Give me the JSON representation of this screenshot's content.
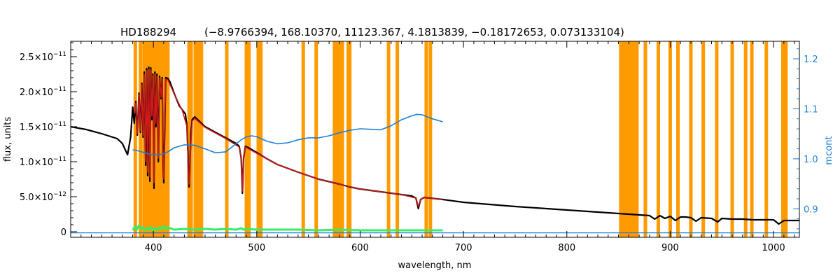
{
  "chart_data": {
    "type": "line",
    "title_star": "HD188294",
    "title_params": "(−8.9766394, 168.10370, 11123.367, 4.1813839, −0.18172653, 0.073133104)",
    "xlabel": "wavelength, nm",
    "ylabel": "flux, units",
    "ylabel_right": "mcont",
    "xlim": [
      320,
      1025
    ],
    "ylim": [
      -8e-13,
      2.72e-11
    ],
    "ylim_right": [
      0.843,
      1.235
    ],
    "x_ticks": [
      400,
      500,
      600,
      700,
      800,
      900,
      1000
    ],
    "x_tick_labels": [
      "400",
      "500",
      "600",
      "700",
      "800",
      "900",
      "1000"
    ],
    "y_ticks": [
      0,
      5e-12,
      1e-11,
      1.5e-11,
      2e-11,
      2.5e-11
    ],
    "y_tick_mantissas": [
      "0",
      "5.0×10",
      "1.0×10",
      "1.5×10",
      "2.0×10",
      "2.5×10"
    ],
    "y_tick_exponents": [
      "",
      "−12",
      "−11",
      "−11",
      "−11",
      "−11"
    ],
    "y_right_ticks": [
      0.9,
      1.0,
      1.1,
      1.2
    ],
    "y_right_tick_labels": [
      "0.9",
      "1.0",
      "1.1",
      "1.2"
    ],
    "colors": {
      "observed": "#000000",
      "model": "#cc1a1a",
      "mcont": "#1e7fd6",
      "residual": "#33ee66",
      "mask": "#ff9a00",
      "right_axis": "#1e7fd6"
    },
    "mask_lines": [
      382.5,
      387.5,
      391,
      394,
      397,
      400,
      402,
      404.5,
      406.5,
      409,
      411,
      414,
      434.5,
      436.5,
      440.5,
      443.5,
      446.5,
      471,
      490,
      492.5,
      501.5,
      504,
      545,
      557.5,
      579.5,
      588.5,
      590,
      627.5,
      636,
      664,
      668
    ],
    "mask_bands": [
      [
        573.5,
        584.5
      ],
      [
        850.5,
        869.5
      ]
    ],
    "mask_lines_nir": [
      876,
      888.5,
      900,
      907.5,
      920,
      932,
      945,
      960,
      973,
      979,
      993,
      1009,
      1012
    ],
    "series": [
      {
        "id": "observed",
        "x": [
          320,
          335,
          350,
          365,
          370,
          375,
          378,
          380,
          381.5,
          383,
          384.5,
          386,
          387.5,
          388.8,
          390,
          391.2,
          392.5,
          393.5,
          394.5,
          395.5,
          396.6,
          397.5,
          398.5,
          399.5,
          400.6,
          401.5,
          402.5,
          403.5,
          404.8,
          406,
          407.5,
          408.5,
          409.3,
          410.1,
          410.9,
          412,
          414,
          416,
          420,
          425,
          428,
          431,
          432.5,
          433.5,
          434,
          434.6,
          435.3,
          436.3,
          437.5,
          440,
          445,
          450,
          460,
          470,
          480,
          483,
          485,
          486.1,
          487.3,
          489,
          492,
          500,
          510,
          520,
          540,
          560,
          580,
          590,
          600,
          620,
          640,
          650,
          654,
          656.3,
          658.5,
          662,
          680,
          700,
          750,
          800,
          850,
          860,
          870,
          880,
          885,
          890,
          895,
          900,
          905,
          910,
          915,
          920,
          925,
          930,
          940,
          946,
          950,
          960,
          970,
          980,
          990,
          1000,
          1005,
          1010,
          1015,
          1025
        ],
        "y": [
          1.5e-11,
          1.46e-11,
          1.4e-11,
          1.33e-11,
          1.26e-11,
          1.1e-11,
          1.35e-11,
          1.78e-11,
          1.55e-11,
          1.86e-11,
          1.38e-11,
          1.98e-11,
          1.42e-11,
          2.12e-11,
          1.35e-11,
          2.28e-11,
          9.5e-12,
          2.33e-11,
          8e-12,
          2.35e-11,
          7.2e-12,
          2.34e-11,
          1.6e-11,
          2.25e-11,
          6.2e-12,
          2.28e-11,
          1.5e-11,
          2.25e-11,
          1e-11,
          2.22e-11,
          1.9e-11,
          2.2e-11,
          1e-11,
          7e-12,
          1.4e-11,
          2.2e-11,
          2.19e-11,
          2.14e-11,
          1.98e-11,
          1.8e-11,
          1.74e-11,
          1.68e-11,
          1.5e-11,
          1.1e-11,
          7.5e-12,
          6.4e-12,
          9.5e-12,
          1.4e-11,
          1.6e-11,
          1.64e-11,
          1.57e-11,
          1.5e-11,
          1.42e-11,
          1.34e-11,
          1.26e-11,
          1.22e-11,
          1.05e-11,
          5.5e-12,
          1.05e-11,
          1.22e-11,
          1.2e-11,
          1.13e-11,
          1.04e-11,
          9.6e-12,
          8.5e-12,
          7.5e-12,
          6.8e-12,
          6.4e-12,
          6.1e-12,
          5.7e-12,
          5.3e-12,
          5.1e-12,
          4.8e-12,
          3.3e-12,
          4.6e-12,
          4.9e-12,
          4.6e-12,
          4.2e-12,
          3.6e-12,
          3.1e-12,
          2.6e-12,
          2.5e-12,
          2.4e-12,
          2.3e-12,
          1.8e-12,
          2.3e-12,
          1.9e-12,
          2.2e-12,
          1.6e-12,
          2.1e-12,
          2.1e-12,
          2e-12,
          1.5e-12,
          2e-12,
          1.9e-12,
          1.4e-12,
          1.9e-12,
          1.8e-12,
          1.8e-12,
          1.7e-12,
          1.7e-12,
          1.7e-12,
          1.1e-12,
          1.6e-12,
          1.6e-12,
          1.6e-12
        ]
      },
      {
        "id": "model",
        "x": [
          382,
          383,
          384.5,
          386,
          387.5,
          388.8,
          390,
          391.2,
          392.5,
          393.5,
          394.5,
          395.5,
          396.6,
          397.5,
          398.5,
          399.5,
          400.6,
          401.5,
          402.5,
          403.5,
          404.8,
          406,
          407.5,
          408.5,
          409.3,
          410.1,
          410.9,
          412,
          414,
          420,
          428,
          432.5,
          434,
          434.6,
          435.3,
          437.5,
          440,
          450,
          470,
          483,
          485,
          486.1,
          487.3,
          489,
          500,
          520,
          540,
          560,
          580,
          600,
          620,
          640,
          654,
          656.3,
          658.5,
          662,
          680
        ],
        "y": [
          1.68e-11,
          1.84e-11,
          1.4e-11,
          1.96e-11,
          1.44e-11,
          2.1e-11,
          1.38e-11,
          2.25e-11,
          1e-11,
          2.3e-11,
          8.5e-12,
          2.32e-11,
          7.8e-12,
          2.31e-11,
          1.65e-11,
          2.23e-11,
          7e-12,
          2.25e-11,
          1.55e-11,
          2.22e-11,
          1.05e-11,
          2.2e-11,
          1.92e-11,
          2.18e-11,
          1.05e-11,
          7.5e-12,
          1.45e-11,
          2.18e-11,
          2.17e-11,
          1.97e-11,
          1.73e-11,
          1.5e-11,
          7.8e-12,
          6.8e-12,
          9.8e-12,
          1.58e-11,
          1.62e-11,
          1.49e-11,
          1.33e-11,
          1.21e-11,
          1.06e-11,
          5.8e-12,
          1.06e-11,
          1.21e-11,
          1.12e-11,
          9.6e-12,
          8.5e-12,
          7.5e-12,
          6.8e-12,
          6.1e-12,
          5.7e-12,
          5.3e-12,
          4.8e-12,
          3.6e-12,
          4.6e-12,
          4.9e-12,
          4.6e-12
        ]
      },
      {
        "id": "mcont",
        "axis": "right",
        "x": [
          380,
          385,
          390,
          395,
          400,
          405,
          410,
          415,
          420,
          430,
          440,
          450,
          460,
          470,
          480,
          485,
          490,
          495,
          500,
          510,
          520,
          530,
          540,
          550,
          560,
          570,
          580,
          590,
          600,
          610,
          620,
          630,
          640,
          650,
          655,
          660,
          670,
          680
        ],
        "y": [
          1.018,
          1.016,
          1.013,
          1.01,
          1.008,
          1.008,
          1.01,
          1.015,
          1.022,
          1.028,
          1.027,
          1.02,
          1.012,
          1.014,
          1.03,
          1.038,
          1.044,
          1.046,
          1.044,
          1.035,
          1.03,
          1.032,
          1.038,
          1.042,
          1.042,
          1.046,
          1.052,
          1.057,
          1.06,
          1.059,
          1.058,
          1.066,
          1.078,
          1.086,
          1.089,
          1.088,
          1.08,
          1.074
        ]
      },
      {
        "id": "mcont_flat",
        "axis": "right",
        "x": [
          320,
          1025
        ],
        "y": [
          0.852,
          0.852
        ]
      },
      {
        "id": "residual",
        "x": [
          380,
          382,
          384,
          386,
          388,
          390,
          392,
          394,
          396,
          398,
          400,
          402,
          404,
          406,
          408,
          410,
          412,
          414,
          420,
          430,
          440,
          450,
          460,
          470,
          480,
          485,
          487,
          490,
          500,
          520,
          540,
          560,
          580,
          600,
          620,
          640,
          660,
          680
        ],
        "y": [
          2e-13,
          7e-13,
          3e-13,
          9e-13,
          4e-13,
          6e-13,
          2e-13,
          5e-13,
          3e-13,
          7e-13,
          2e-13,
          5e-13,
          3e-13,
          6e-13,
          4e-13,
          8e-13,
          4e-13,
          6e-13,
          3e-13,
          4e-13,
          3e-13,
          4e-13,
          3e-13,
          4e-13,
          3e-13,
          5e-13,
          3e-13,
          4e-13,
          3e-13,
          3e-13,
          3e-13,
          2e-13,
          3e-13,
          2e-13,
          2e-13,
          2e-13,
          2e-13,
          2e-13
        ]
      }
    ]
  }
}
